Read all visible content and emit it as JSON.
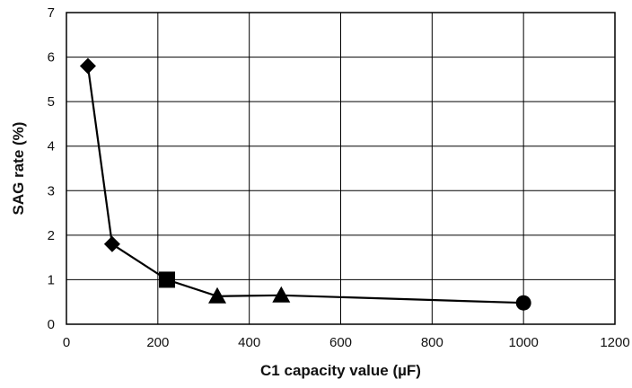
{
  "chart_data": {
    "type": "line",
    "title": "",
    "xlabel": "C1 capacity value (µF)",
    "ylabel": "SAG rate (%)",
    "xlim": [
      0,
      1200
    ],
    "ylim": [
      0,
      7
    ],
    "x_ticks": [
      0,
      200,
      400,
      600,
      800,
      1000,
      1200
    ],
    "y_ticks": [
      0,
      1,
      2,
      3,
      4,
      5,
      6,
      7
    ],
    "grid": true,
    "legend": "none",
    "series": [
      {
        "color": "#000000",
        "points": [
          {
            "x": 47,
            "y": 5.8,
            "marker": "diamond"
          },
          {
            "x": 100,
            "y": 1.8,
            "marker": "diamond"
          },
          {
            "x": 220,
            "y": 1.0,
            "marker": "square"
          },
          {
            "x": 330,
            "y": 0.63,
            "marker": "triangle"
          },
          {
            "x": 470,
            "y": 0.65,
            "marker": "triangle"
          },
          {
            "x": 1000,
            "y": 0.48,
            "marker": "circle"
          }
        ]
      }
    ]
  }
}
